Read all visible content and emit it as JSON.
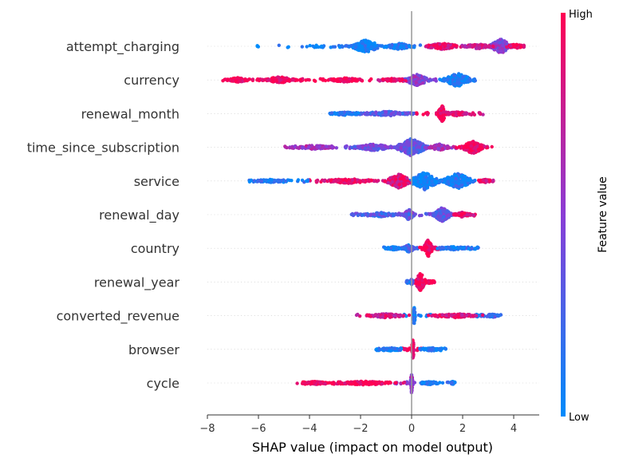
{
  "chart_data": {
    "type": "scatter",
    "title": "",
    "xlabel": "SHAP value (impact on model output)",
    "ylabel": "",
    "xlim": [
      -8.2,
      5.0
    ],
    "xticks": [
      -8,
      -6,
      -4,
      -2,
      0,
      2,
      4
    ],
    "xtick_labels": [
      "−8",
      "−6",
      "−4",
      "−2",
      "0",
      "2",
      "4"
    ],
    "grid": false,
    "colorbar": {
      "title": "Feature value",
      "high_label": "High",
      "low_label": "Low",
      "low_color": "#008bfb",
      "mid_color": "#8a3dd6",
      "high_color": "#ff0052"
    },
    "features": [
      {
        "name": "attempt_charging",
        "min": -6.1,
        "max": 4.4,
        "clusters": [
          {
            "x": 3.5,
            "w": 0.45,
            "h": 18,
            "v": 0.5
          },
          {
            "x": -1.8,
            "w": 0.6,
            "h": 16,
            "v": 0.05
          },
          {
            "x": -0.5,
            "w": 0.5,
            "h": 8,
            "v": 0.1
          },
          {
            "x": 1.2,
            "w": 0.7,
            "h": 8,
            "v": 0.85
          },
          {
            "x": 2.6,
            "w": 0.6,
            "h": 6,
            "v": 0.75
          },
          {
            "x": 4.1,
            "w": 0.3,
            "h": 6,
            "v": 0.95
          }
        ]
      },
      {
        "name": "currency",
        "min": -7.4,
        "max": 2.5,
        "clusters": [
          {
            "x": 1.8,
            "w": 0.55,
            "h": 18,
            "v": 0.05
          },
          {
            "x": 0.2,
            "w": 0.5,
            "h": 14,
            "v": 0.5
          },
          {
            "x": -5.2,
            "w": 0.7,
            "h": 8,
            "v": 0.97
          },
          {
            "x": -6.8,
            "w": 0.4,
            "h": 6,
            "v": 0.97
          },
          {
            "x": -2.6,
            "w": 0.7,
            "h": 5,
            "v": 0.97
          },
          {
            "x": -0.8,
            "w": 0.4,
            "h": 4,
            "v": 0.9
          }
        ]
      },
      {
        "name": "renewal_month",
        "min": -3.2,
        "max": 2.8,
        "clusters": [
          {
            "x": 1.2,
            "w": 0.18,
            "h": 20,
            "v": 0.97
          },
          {
            "x": -1.0,
            "w": 1.0,
            "h": 6,
            "v": 0.3
          },
          {
            "x": -2.6,
            "w": 0.5,
            "h": 4,
            "v": 0.1
          },
          {
            "x": 1.8,
            "w": 0.4,
            "h": 6,
            "v": 0.85
          }
        ]
      },
      {
        "name": "time_since_subscription",
        "min": -5.0,
        "max": 3.2,
        "clusters": [
          {
            "x": 0.0,
            "w": 0.6,
            "h": 22,
            "v": 0.35
          },
          {
            "x": 2.4,
            "w": 0.45,
            "h": 16,
            "v": 0.95
          },
          {
            "x": -1.5,
            "w": 0.8,
            "h": 8,
            "v": 0.4
          },
          {
            "x": -3.8,
            "w": 0.8,
            "h": 5,
            "v": 0.6
          },
          {
            "x": 1.1,
            "w": 0.4,
            "h": 8,
            "v": 0.6
          }
        ]
      },
      {
        "name": "service",
        "min": -6.4,
        "max": 3.2,
        "clusters": [
          {
            "x": 0.5,
            "w": 0.6,
            "h": 22,
            "v": 0.05
          },
          {
            "x": -0.5,
            "w": 0.5,
            "h": 18,
            "v": 0.85
          },
          {
            "x": 1.8,
            "w": 0.6,
            "h": 20,
            "v": 0.1
          },
          {
            "x": -2.5,
            "w": 1.0,
            "h": 6,
            "v": 0.9
          },
          {
            "x": -5.5,
            "w": 0.6,
            "h": 4,
            "v": 0.1
          },
          {
            "x": 2.9,
            "w": 0.3,
            "h": 4,
            "v": 0.9
          }
        ]
      },
      {
        "name": "renewal_day",
        "min": -2.4,
        "max": 2.5,
        "clusters": [
          {
            "x": 1.2,
            "w": 0.35,
            "h": 18,
            "v": 0.35
          },
          {
            "x": -0.1,
            "w": 0.2,
            "h": 14,
            "v": 0.4
          },
          {
            "x": -1.2,
            "w": 0.8,
            "h": 5,
            "v": 0.3
          },
          {
            "x": 2.0,
            "w": 0.4,
            "h": 6,
            "v": 0.9
          }
        ]
      },
      {
        "name": "country",
        "min": -1.1,
        "max": 2.7,
        "clusters": [
          {
            "x": 0.65,
            "w": 0.18,
            "h": 22,
            "v": 0.97
          },
          {
            "x": -0.1,
            "w": 0.25,
            "h": 10,
            "v": 0.2
          },
          {
            "x": 1.6,
            "w": 0.6,
            "h": 4,
            "v": 0.15
          },
          {
            "x": -0.7,
            "w": 0.3,
            "h": 4,
            "v": 0.05
          }
        ]
      },
      {
        "name": "renewal_year",
        "min": -0.2,
        "max": 0.9,
        "clusters": [
          {
            "x": 0.35,
            "w": 0.2,
            "h": 24,
            "v": 0.97
          },
          {
            "x": 0.0,
            "w": 0.05,
            "h": 8,
            "v": 0.2
          }
        ]
      },
      {
        "name": "converted_revenue",
        "min": -2.3,
        "max": 3.5,
        "clusters": [
          {
            "x": 0.1,
            "w": 0.04,
            "h": 28,
            "v": 0.05
          },
          {
            "x": -1.0,
            "w": 0.8,
            "h": 5,
            "v": 0.8
          },
          {
            "x": 1.7,
            "w": 0.9,
            "h": 5,
            "v": 0.85
          },
          {
            "x": 3.2,
            "w": 0.2,
            "h": 4,
            "v": 0.2
          }
        ]
      },
      {
        "name": "browser",
        "min": -1.4,
        "max": 1.4,
        "clusters": [
          {
            "x": 0.05,
            "w": 0.05,
            "h": 26,
            "v": 0.97
          },
          {
            "x": -0.8,
            "w": 0.4,
            "h": 4,
            "v": 0.05
          },
          {
            "x": 0.8,
            "w": 0.4,
            "h": 4,
            "v": 0.05
          }
        ]
      },
      {
        "name": "cycle",
        "min": -4.5,
        "max": 1.7,
        "clusters": [
          {
            "x": 0.0,
            "w": 0.05,
            "h": 26,
            "v": 0.55
          },
          {
            "x": -1.8,
            "w": 1.2,
            "h": 5,
            "v": 0.97
          },
          {
            "x": -3.8,
            "w": 0.5,
            "h": 4,
            "v": 0.97
          },
          {
            "x": 0.7,
            "w": 0.3,
            "h": 4,
            "v": 0.1
          },
          {
            "x": 1.6,
            "w": 0.1,
            "h": 4,
            "v": 0.1
          }
        ]
      }
    ]
  }
}
